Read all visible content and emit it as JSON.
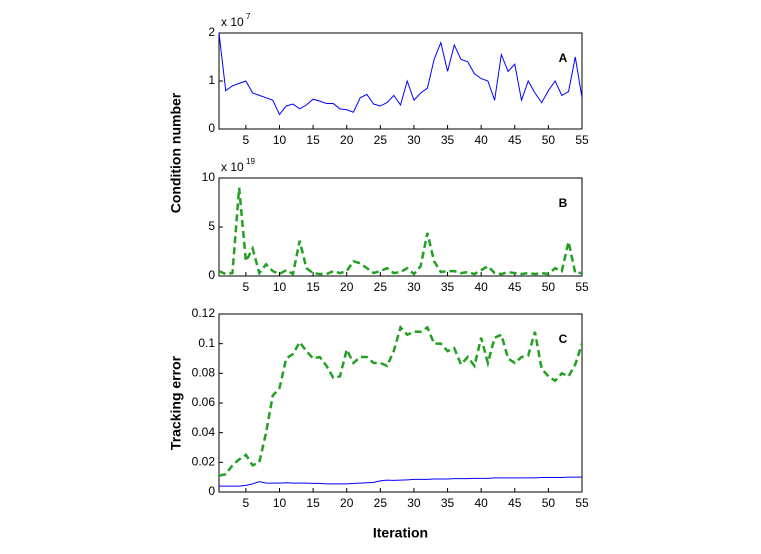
{
  "chart_data": [
    {
      "type": "line",
      "annotation": "A",
      "y_label": "Condition number",
      "y_multiplier": "x 10",
      "y_exponent": "7",
      "x": [
        1,
        2,
        3,
        4,
        5,
        6,
        7,
        8,
        9,
        10,
        11,
        12,
        13,
        14,
        15,
        16,
        17,
        18,
        19,
        20,
        21,
        22,
        23,
        24,
        25,
        26,
        27,
        28,
        29,
        30,
        31,
        32,
        33,
        34,
        35,
        36,
        37,
        38,
        39,
        40,
        41,
        42,
        43,
        44,
        45,
        46,
        47,
        48,
        49,
        50,
        51,
        52,
        53,
        54,
        55
      ],
      "series": [
        {
          "color": "#0000ff",
          "style": "solid",
          "values": [
            2.0,
            0.8,
            0.9,
            0.95,
            1.0,
            0.75,
            0.7,
            0.65,
            0.6,
            0.3,
            0.48,
            0.52,
            0.42,
            0.5,
            0.62,
            0.58,
            0.53,
            0.53,
            0.42,
            0.4,
            0.35,
            0.65,
            0.72,
            0.52,
            0.48,
            0.55,
            0.7,
            0.5,
            1.0,
            0.6,
            0.75,
            0.85,
            1.45,
            1.8,
            1.2,
            1.75,
            1.45,
            1.4,
            1.15,
            1.05,
            1.0,
            0.6,
            1.55,
            1.2,
            1.35,
            0.6,
            1.0,
            0.75,
            0.55,
            0.8,
            1.0,
            0.7,
            0.78,
            1.5,
            0.65
          ]
        }
      ],
      "xlim": [
        1,
        55
      ],
      "ylim": [
        0,
        2
      ],
      "xticks": [
        5,
        10,
        15,
        20,
        25,
        30,
        35,
        40,
        45,
        50,
        55
      ],
      "yticks": [
        0,
        1,
        2
      ]
    },
    {
      "type": "line",
      "annotation": "B",
      "y_multiplier": "x 10",
      "y_exponent": "19",
      "x": [
        1,
        2,
        3,
        4,
        5,
        6,
        7,
        8,
        9,
        10,
        11,
        12,
        13,
        14,
        15,
        16,
        17,
        18,
        19,
        20,
        21,
        22,
        23,
        24,
        25,
        26,
        27,
        28,
        29,
        30,
        31,
        32,
        33,
        34,
        35,
        36,
        37,
        38,
        39,
        40,
        41,
        42,
        43,
        44,
        45,
        46,
        47,
        48,
        49,
        50,
        51,
        52,
        53,
        54,
        55
      ],
      "series": [
        {
          "color": "#22a022",
          "style": "dashed",
          "values": [
            0.5,
            0.2,
            0.3,
            9,
            1.5,
            2.8,
            0.3,
            1.2,
            0.5,
            0.2,
            0.6,
            0.2,
            3.6,
            0.8,
            0.3,
            0.2,
            0.2,
            0.5,
            0.3,
            0.5,
            1.5,
            1.3,
            0.8,
            0.3,
            0.5,
            0.8,
            0.3,
            0.4,
            0.8,
            0.2,
            1.0,
            4.4,
            1.5,
            0.4,
            0.5,
            0.5,
            0.3,
            0.4,
            0.2,
            0.6,
            1.0,
            0.3,
            0.2,
            0.4,
            0.3,
            0.2,
            0.3,
            0.2,
            0.3,
            0.2,
            0.8,
            0.5,
            3.5,
            0.3,
            0.3
          ]
        }
      ],
      "xlim": [
        1,
        55
      ],
      "ylim": [
        0,
        10
      ],
      "xticks": [
        5,
        10,
        15,
        20,
        25,
        30,
        35,
        40,
        45,
        50,
        55
      ],
      "yticks": [
        0,
        5,
        10
      ]
    },
    {
      "type": "line",
      "annotation": "C",
      "y_label": "Tracking error",
      "x_label": "Iteration",
      "x": [
        1,
        2,
        3,
        4,
        5,
        6,
        7,
        8,
        9,
        10,
        11,
        12,
        13,
        14,
        15,
        16,
        17,
        18,
        19,
        20,
        21,
        22,
        23,
        24,
        25,
        26,
        27,
        28,
        29,
        30,
        31,
        32,
        33,
        34,
        35,
        36,
        37,
        38,
        39,
        40,
        41,
        42,
        43,
        44,
        45,
        46,
        47,
        48,
        49,
        50,
        51,
        52,
        53,
        54,
        55
      ],
      "series": [
        {
          "color": "#22a022",
          "style": "dashed",
          "values": [
            0.011,
            0.012,
            0.018,
            0.022,
            0.025,
            0.018,
            0.02,
            0.04,
            0.065,
            0.07,
            0.09,
            0.093,
            0.101,
            0.095,
            0.09,
            0.091,
            0.085,
            0.077,
            0.078,
            0.096,
            0.087,
            0.091,
            0.091,
            0.087,
            0.087,
            0.085,
            0.095,
            0.111,
            0.106,
            0.108,
            0.108,
            0.111,
            0.1,
            0.1,
            0.095,
            0.097,
            0.086,
            0.091,
            0.085,
            0.104,
            0.087,
            0.104,
            0.106,
            0.09,
            0.087,
            0.091,
            0.092,
            0.108,
            0.083,
            0.078,
            0.075,
            0.08,
            0.078,
            0.086,
            0.1
          ]
        },
        {
          "color": "#0000ff",
          "style": "solid",
          "values": [
            0.004,
            0.004,
            0.004,
            0.004,
            0.0045,
            0.0055,
            0.007,
            0.006,
            0.006,
            0.006,
            0.0062,
            0.006,
            0.006,
            0.006,
            0.0058,
            0.0058,
            0.0055,
            0.0055,
            0.0055,
            0.0055,
            0.0058,
            0.006,
            0.0062,
            0.0065,
            0.0075,
            0.008,
            0.0078,
            0.008,
            0.0082,
            0.0085,
            0.0085,
            0.0085,
            0.0088,
            0.0088,
            0.0088,
            0.009,
            0.009,
            0.009,
            0.0092,
            0.0092,
            0.0092,
            0.0095,
            0.0095,
            0.0095,
            0.0095,
            0.0095,
            0.0095,
            0.0095,
            0.0098,
            0.0098,
            0.0098,
            0.0098,
            0.01,
            0.01,
            0.01
          ]
        }
      ],
      "xlim": [
        1,
        55
      ],
      "ylim": [
        0,
        0.12
      ],
      "xticks": [
        5,
        10,
        15,
        20,
        25,
        30,
        35,
        40,
        45,
        50,
        55
      ],
      "yticks": [
        0,
        0.02,
        0.04,
        0.06,
        0.08,
        0.1,
        0.12
      ]
    }
  ]
}
